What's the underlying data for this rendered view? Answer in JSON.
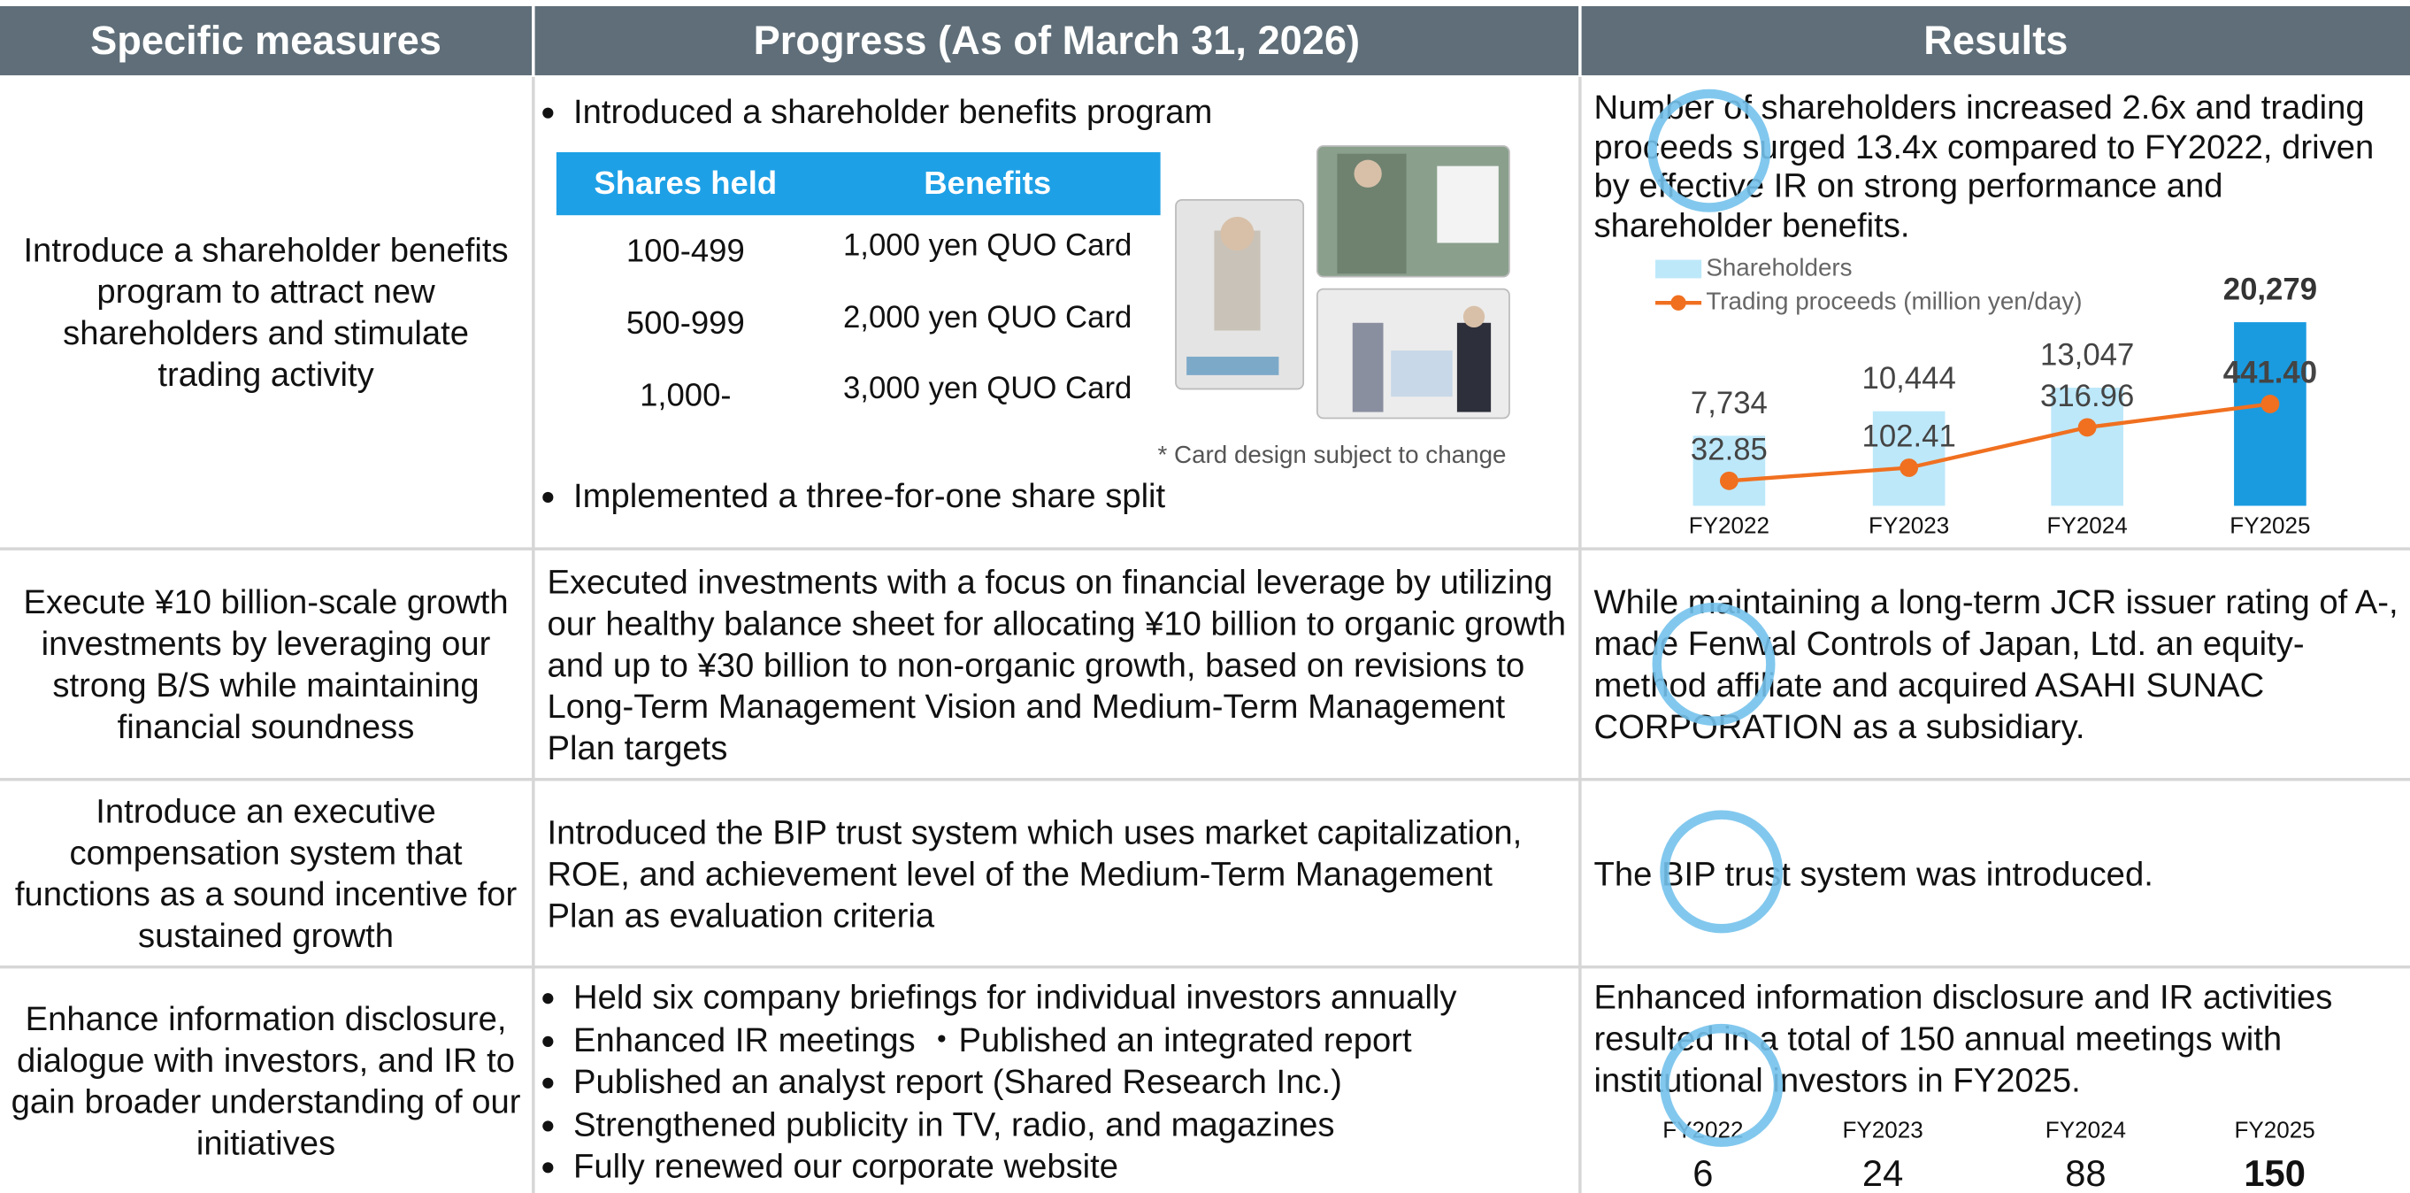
{
  "header": {
    "columns": [
      "Specific measures",
      "Progress (As of March 31, 2026)",
      "Results"
    ]
  },
  "table": {
    "rows": [
      {
        "measure": "Introduce a shareholder benefits program to attract new shareholders and stimulate trading activity",
        "progress": [
          "Introduced a shareholder benefits program",
          "Implemented a three-for-one share split"
        ],
        "benefits_table": {
          "columns": [
            "Shares held",
            "Benefits"
          ],
          "rows": [
            [
              "100-499",
              "1,000 yen QUO Card"
            ],
            [
              "500-999",
              "2,000 yen QUO Card"
            ],
            [
              "1,000-",
              "3,000 yen QUO Card"
            ]
          ]
        },
        "note": "* Card design subject to change",
        "result": "Number of shareholders increased 2.6x and trading proceeds surged 13.4x compared to FY2022, driven by effective IR on strong performance and shareholder benefits."
      },
      {
        "measure": "Execute ¥10 billion-scale growth investments by leveraging our strong B/S while maintaining financial soundness",
        "progress": [
          "Executed investments with a focus on financial leverage by utilizing our healthy balance sheet for allocating ¥10 billion to organic growth and up to ¥30 billion to non-organic growth, based on revisions to Long-Term Management Vision and Medium-Term Management Plan targets"
        ],
        "result": "While maintaining a long-term JCR issuer rating of A-, made Fenwal Controls of Japan, Ltd. an equity-method affiliate and acquired ASAHI SUNAC CORPORATION as a subsidiary."
      },
      {
        "measure": "Introduce an executive compensation system that functions as a sound incentive for sustained growth",
        "progress": [
          "Introduced the BIP trust system which uses market capitalization, ROE, and achievement level of the Medium-Term Management Plan as evaluation criteria"
        ],
        "result": "The BIP trust system was introduced."
      },
      {
        "measure": "Enhance information disclosure, dialogue with investors, and IR to gain broader understanding of our initiatives",
        "progress": [
          "Held six company briefings for individual investors annually",
          "Enhanced IR meetings ・Published an integrated report",
          "Published an analyst report (Shared Research Inc.)",
          "Strengthened publicity in TV, radio, and magazines",
          "Fully renewed our corporate website"
        ],
        "result": "Enhanced information disclosure and IR activities resulted in a total of 150 annual meetings with institutional investors in FY2025.",
        "result_figures": {
          "categories": [
            "FY2022",
            "FY2023",
            "FY2024",
            "FY2025"
          ],
          "values": [
            6,
            24,
            88,
            150
          ]
        }
      }
    ]
  },
  "chart_data": {
    "type": "bar-line",
    "categories": [
      "FY2022",
      "FY2023",
      "FY2024",
      "FY2025"
    ],
    "series": [
      {
        "name": "Shareholders",
        "kind": "bar",
        "color": "#bde8fa",
        "colors": [
          "#bde8fa",
          "#bde8fa",
          "#bde8fa",
          "#1a9be0"
        ],
        "values": [
          7734,
          10444,
          13047,
          20279
        ],
        "value_labels": [
          "7,734",
          "10,444",
          "13,047",
          "20,279"
        ]
      },
      {
        "name": "Trading proceeds (million yen/day)",
        "kind": "line",
        "axis": "y2",
        "color": "#f07020",
        "values": [
          32.85,
          102.41,
          316.96,
          441.4
        ],
        "value_labels": [
          "32.85",
          "102.41",
          "316.96",
          "441.40"
        ]
      }
    ],
    "ylim": [
      0,
      27000
    ],
    "y2lim": [
      -100,
      1200
    ]
  }
}
